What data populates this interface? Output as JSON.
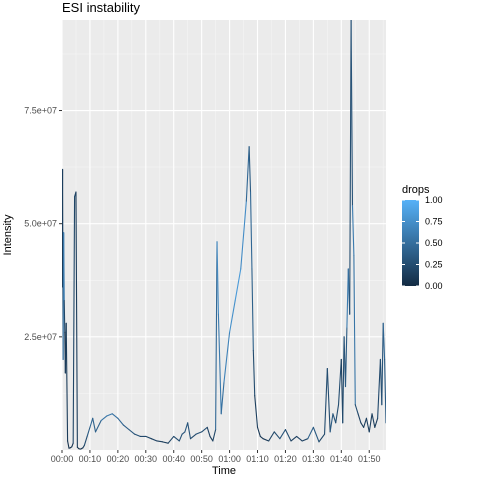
{
  "chart_data": {
    "type": "line",
    "title": "ESI instability",
    "xlabel": "Time",
    "ylabel": "Intensity",
    "x_tick_labels": [
      "00:00",
      "00:10",
      "00:20",
      "00:30",
      "00:40",
      "00:50",
      "01:00",
      "01:10",
      "01:20",
      "01:30",
      "01:40",
      "01:50"
    ],
    "y_tick_labels": [
      "2.5e+07",
      "5.0e+07",
      "7.5e+07"
    ],
    "y_ticks": [
      25000000,
      50000000,
      75000000
    ],
    "xlim_minutes": [
      0,
      116
    ],
    "ylim": [
      0,
      95000000
    ],
    "grid": true,
    "legend": {
      "title": "drops",
      "position": "right",
      "type": "colorbar",
      "tick_labels": [
        "1.00",
        "0.75",
        "0.50",
        "0.25",
        "0.00"
      ],
      "tick_values": [
        1.0,
        0.75,
        0.5,
        0.25,
        0.0
      ],
      "color_low": "#132B43",
      "color_high": "#56B1F7"
    },
    "series": [
      {
        "x_minutes": [
          0,
          0.2,
          0.4,
          0.6,
          0.8,
          1.0,
          1.2,
          1.5,
          2.0,
          2.5,
          3.0,
          3.5,
          4.0,
          4.5,
          5.0,
          5.5,
          6.0,
          6.5,
          7.0,
          7.5,
          8.0,
          9.0,
          10.0,
          11.0,
          12.0,
          14.0,
          16.0,
          18.0,
          20.0,
          22.0,
          24.0,
          26.0,
          28.0,
          30.0,
          32.0,
          34.0,
          36.0,
          38.0,
          40.0,
          42.0,
          43.0,
          44.0,
          45.0,
          46.0,
          48.0,
          50.0,
          52.0,
          53.0,
          54.0,
          55.0,
          55.5,
          56.0,
          57.0,
          58.0,
          60.0,
          62.0,
          64.0,
          66.0,
          67.0,
          67.5,
          68.0,
          68.5,
          69.0,
          70.0,
          71.0,
          72.0,
          74.0,
          76.0,
          78.0,
          80.0,
          82.0,
          84.0,
          86.0,
          88.0,
          90.0,
          92.0,
          94.0,
          95.0,
          96.0,
          97.0,
          98.0,
          99.0,
          100.0,
          100.5,
          101.0,
          101.5,
          102.0,
          102.5,
          103.0,
          103.5,
          104.0,
          104.5,
          105.0,
          106.0,
          107.0,
          108.0,
          109.0,
          110.0,
          111.0,
          112.0,
          113.0,
          114.0,
          114.5,
          115.0,
          115.5,
          116.0
        ],
        "y": [
          36000000,
          62000000,
          20000000,
          48000000,
          33000000,
          26000000,
          17000000,
          28000000,
          2000000,
          400000,
          500000,
          700000,
          1500000,
          56000000,
          57000000,
          600000,
          300000,
          200000,
          300000,
          500000,
          1000000,
          3000000,
          5000000,
          7000000,
          4000000,
          6500000,
          7500000,
          8000000,
          7000000,
          5500000,
          4500000,
          3500000,
          3000000,
          3000000,
          2500000,
          2000000,
          1800000,
          1500000,
          3000000,
          2000000,
          3500000,
          4000000,
          6000000,
          2500000,
          3500000,
          4000000,
          5000000,
          3000000,
          2000000,
          4500000,
          46000000,
          30000000,
          8000000,
          15000000,
          26000000,
          33000000,
          40000000,
          55000000,
          67000000,
          57000000,
          40000000,
          22000000,
          12000000,
          5000000,
          3000000,
          2500000,
          2000000,
          4000000,
          2500000,
          4500000,
          2000000,
          3000000,
          2000000,
          2500000,
          5000000,
          1800000,
          3500000,
          18000000,
          4000000,
          8000000,
          6000000,
          10000000,
          20000000,
          6000000,
          25000000,
          14000000,
          27000000,
          40000000,
          30000000,
          95000000,
          54000000,
          43000000,
          10000000,
          8000000,
          6000000,
          5000000,
          7000000,
          4000000,
          8000000,
          5000000,
          7000000,
          20000000,
          10000000,
          28000000,
          20000000,
          6000000
        ],
        "drops": [
          0.05,
          0.1,
          0.2,
          0.9,
          0.3,
          0.1,
          0.05,
          0.2,
          0.05,
          0.05,
          0.05,
          0.05,
          0.1,
          0.3,
          0.2,
          0.05,
          0.05,
          0.05,
          0.05,
          0.1,
          0.2,
          0.3,
          0.4,
          0.5,
          0.3,
          0.5,
          0.6,
          0.55,
          0.5,
          0.4,
          0.35,
          0.3,
          0.25,
          0.2,
          0.2,
          0.15,
          0.15,
          0.1,
          0.3,
          0.2,
          0.35,
          0.25,
          0.4,
          0.2,
          0.25,
          0.3,
          0.2,
          0.15,
          0.1,
          0.3,
          0.6,
          0.8,
          0.4,
          0.6,
          0.7,
          0.8,
          0.85,
          0.6,
          0.3,
          0.4,
          0.5,
          0.3,
          0.2,
          0.1,
          0.1,
          0.1,
          0.1,
          0.3,
          0.2,
          0.4,
          0.1,
          0.2,
          0.15,
          0.2,
          0.6,
          0.1,
          0.3,
          0.2,
          0.3,
          0.4,
          0.2,
          0.3,
          0.2,
          0.1,
          0.4,
          0.2,
          0.5,
          0.7,
          0.3,
          0.2,
          0.4,
          0.8,
          0.3,
          0.2,
          0.15,
          0.1,
          0.2,
          0.1,
          0.2,
          0.1,
          0.15,
          0.3,
          0.2,
          0.4,
          0.5,
          0.2
        ]
      }
    ]
  }
}
